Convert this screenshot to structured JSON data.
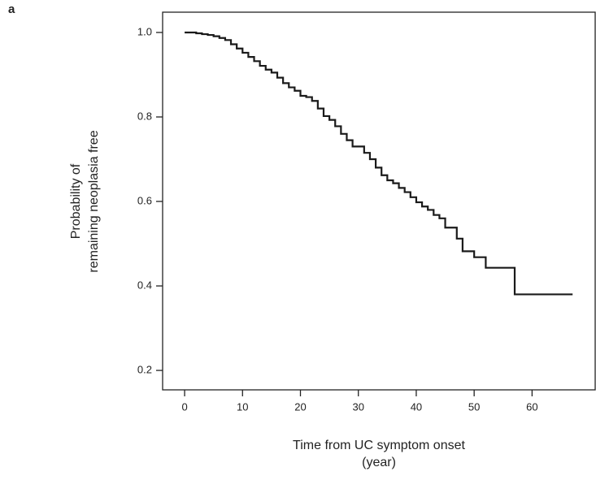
{
  "chart_data": {
    "type": "step",
    "panel_label": "a",
    "xlabel": [
      "Time from UC symptom onset",
      "(year)"
    ],
    "ylabel": [
      "Probability of",
      "remaining neoplasia free"
    ],
    "xlim": [
      -3.8,
      70.9
    ],
    "ylim": [
      0.154,
      1.048
    ],
    "xticks": [
      0,
      10,
      20,
      30,
      40,
      50,
      60
    ],
    "yticks": [
      {
        "value": 1,
        "label": "1.0"
      },
      0.8,
      0.6,
      0.4,
      0.2
    ],
    "series": [
      {
        "color": "#1a1a1a",
        "x": [
          0,
          2,
          3,
          4,
          5,
          6,
          7,
          8,
          9,
          10,
          11,
          12,
          13,
          14,
          15,
          16,
          17,
          18,
          19,
          20,
          21,
          22,
          23,
          24,
          25,
          26,
          27,
          28,
          29,
          31,
          32,
          33,
          34,
          35,
          36,
          37,
          38,
          39,
          40,
          41,
          42,
          43,
          44,
          45,
          47,
          48,
          50,
          52,
          57,
          67
        ],
        "values": [
          1.0,
          0.998,
          0.996,
          0.994,
          0.991,
          0.987,
          0.982,
          0.972,
          0.962,
          0.952,
          0.942,
          0.932,
          0.921,
          0.912,
          0.905,
          0.893,
          0.88,
          0.87,
          0.862,
          0.85,
          0.847,
          0.838,
          0.82,
          0.802,
          0.793,
          0.778,
          0.76,
          0.745,
          0.73,
          0.715,
          0.7,
          0.68,
          0.662,
          0.65,
          0.643,
          0.632,
          0.622,
          0.61,
          0.598,
          0.588,
          0.58,
          0.568,
          0.56,
          0.538,
          0.512,
          0.482,
          0.468,
          0.443,
          0.38,
          0.38
        ]
      }
    ]
  }
}
